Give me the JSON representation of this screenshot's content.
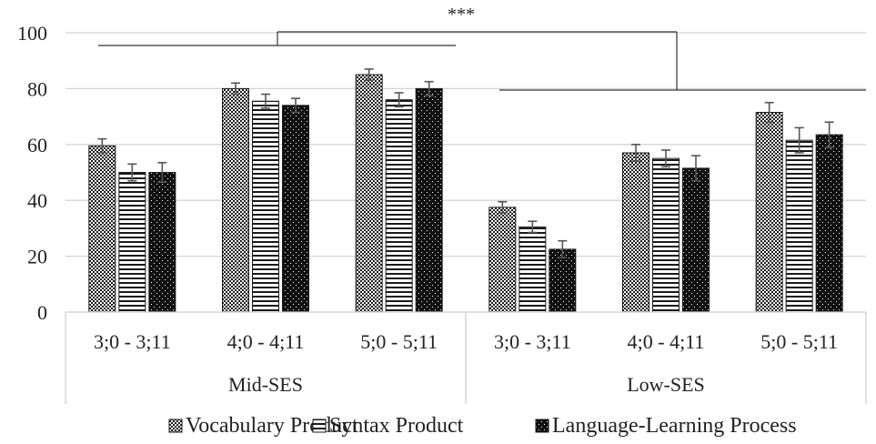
{
  "chart_data": {
    "type": "bar",
    "title": "",
    "xlabel": "",
    "ylabel": "",
    "ylim": [
      0,
      100
    ],
    "yticks": [
      "0",
      "20",
      "40",
      "60",
      "80",
      "100"
    ],
    "grid": true,
    "legend_position": "bottom",
    "groups": [
      {
        "label": "Mid-SES",
        "categories": [
          "3;0 - 3;11",
          "4;0 - 4;11",
          "5;0 - 5;11"
        ]
      },
      {
        "label": "Low-SES",
        "categories": [
          "3;0 - 3;11",
          "4;0 - 4;11",
          "5;0 - 5;11"
        ]
      }
    ],
    "series": [
      {
        "name": "Vocabulary Product",
        "pattern": "dense-dots",
        "values": [
          59.5,
          80,
          85,
          37.5,
          57,
          71.5
        ],
        "errors": [
          2.5,
          2,
          2,
          2,
          3,
          3.5
        ]
      },
      {
        "name": "Syntax Product",
        "pattern": "horizontal-lines",
        "values": [
          50,
          75.5,
          76,
          30.5,
          55,
          61.5
        ],
        "errors": [
          3,
          2.5,
          2.5,
          2,
          3,
          4.5
        ]
      },
      {
        "name": "Language-Learning Process",
        "pattern": "sparse-dots-on-dark",
        "values": [
          50,
          74,
          80,
          22.5,
          51.5,
          63.5
        ],
        "errors": [
          3.5,
          2.5,
          2.5,
          3,
          4.5,
          4.5
        ]
      }
    ],
    "annotation": "***"
  }
}
